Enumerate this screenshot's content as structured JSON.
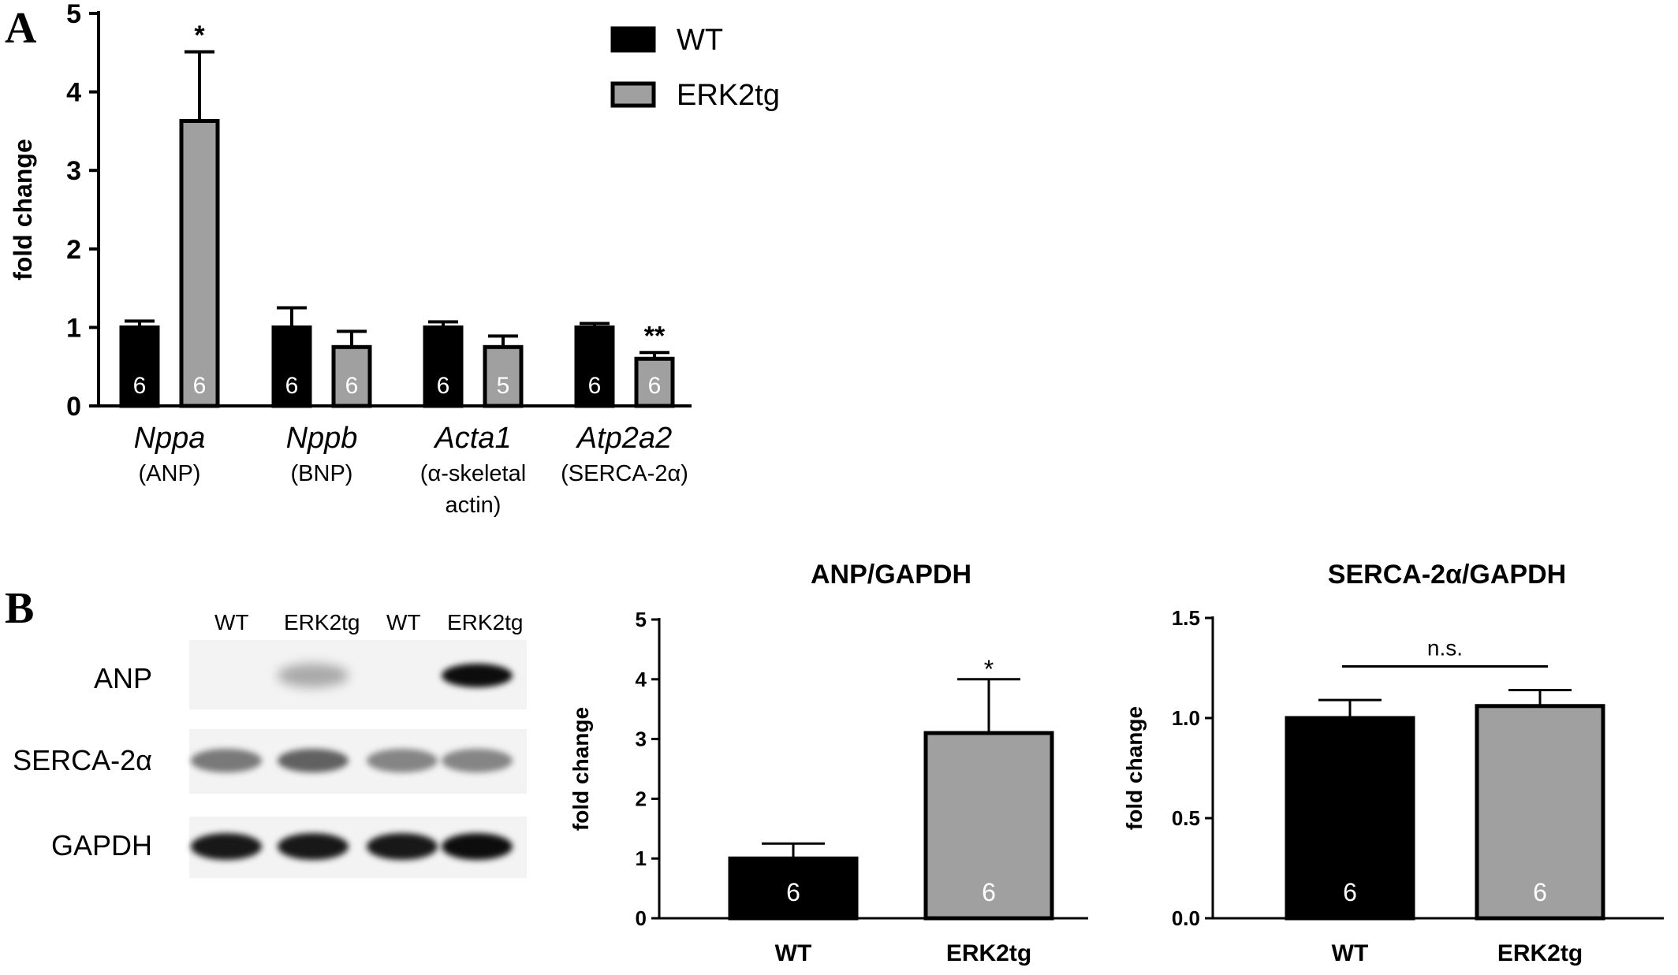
{
  "panels": {
    "a": "A",
    "b": "B"
  },
  "colors": {
    "wt": "#000000",
    "erk2tg": "#a0a0a0",
    "axis": "#000000"
  },
  "legend": [
    {
      "label": "WT",
      "color": "#000000"
    },
    {
      "label": "ERK2tg",
      "color": "#a0a0a0"
    }
  ],
  "blot": {
    "lanes": [
      "WT",
      "ERK2tg",
      "WT",
      "ERK2tg"
    ],
    "rows": [
      {
        "label": "ANP",
        "intensity": [
          0.0,
          0.3,
          0.0,
          0.95
        ]
      },
      {
        "label": "SERCA-2α",
        "intensity": [
          0.5,
          0.6,
          0.45,
          0.45
        ]
      },
      {
        "label": "GAPDH",
        "intensity": [
          0.9,
          0.9,
          0.9,
          0.95
        ]
      }
    ]
  },
  "chart_data": [
    {
      "type": "bar",
      "title": "",
      "ylabel": "fold change",
      "ylim": [
        0,
        5
      ],
      "yticks": [
        "0",
        "1",
        "2",
        "3",
        "4",
        "5"
      ],
      "categories": [
        {
          "gene": "Nppa",
          "protein": [
            "(ANP)"
          ]
        },
        {
          "gene": "Nppb",
          "protein": [
            "(BNP)"
          ]
        },
        {
          "gene": "Acta1",
          "protein": [
            "(α-skeletal",
            "actin)"
          ]
        },
        {
          "gene": "Atp2a2",
          "protein": [
            "(SERCA-2α)"
          ]
        }
      ],
      "series": [
        {
          "name": "WT",
          "values": [
            1.0,
            1.0,
            1.0,
            1.0
          ],
          "errors": [
            0.08,
            0.25,
            0.07,
            0.05
          ],
          "n": [
            "6",
            "6",
            "6",
            "6"
          ],
          "sig": [
            "",
            "",
            "",
            ""
          ]
        },
        {
          "name": "ERK2tg",
          "values": [
            3.63,
            0.75,
            0.75,
            0.6
          ],
          "errors": [
            0.88,
            0.2,
            0.14,
            0.08
          ],
          "n": [
            "6",
            "6",
            "5",
            "6"
          ],
          "sig": [
            "*",
            "",
            "",
            "**"
          ]
        }
      ]
    },
    {
      "type": "bar",
      "title": "ANP/GAPDH",
      "ylabel": "fold change",
      "ylim": [
        0,
        5
      ],
      "yticks": [
        "0",
        "1",
        "2",
        "3",
        "4",
        "5"
      ],
      "categories": [
        "WT",
        "ERK2tg"
      ],
      "values": [
        1.0,
        3.1
      ],
      "errors": [
        0.25,
        0.9
      ],
      "n": [
        "6",
        "6"
      ],
      "sig": [
        "",
        "*"
      ]
    },
    {
      "type": "bar",
      "title": "SERCA-2α/GAPDH",
      "ylabel": "fold change",
      "ylim": [
        0,
        1.5
      ],
      "yticks": [
        "0.0",
        "0.5",
        "1.0",
        "1.5"
      ],
      "categories": [
        "WT",
        "ERK2tg"
      ],
      "values": [
        1.0,
        1.06
      ],
      "errors": [
        0.09,
        0.08
      ],
      "n": [
        "6",
        "6"
      ],
      "bracket": "n.s."
    }
  ]
}
